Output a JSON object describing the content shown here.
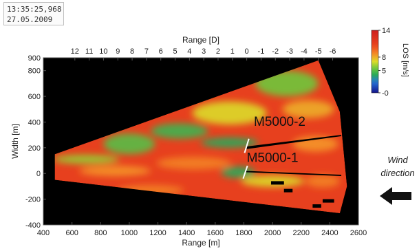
{
  "timestamp": {
    "time": "13:35:25,968",
    "date": "27.05.2009"
  },
  "chart_data": {
    "type": "heatmap",
    "xlabel": "Range [m]",
    "x2label": "Range [D]",
    "ylabel": "Width [m]",
    "xlim": [
      400,
      2600
    ],
    "ylim": [
      -400,
      900
    ],
    "x_ticks": [
      400,
      600,
      800,
      1000,
      1200,
      1400,
      1600,
      1800,
      2000,
      2200,
      2400,
      2600
    ],
    "y_ticks": [
      -400,
      -200,
      0,
      200,
      400,
      600,
      800
    ],
    "x2_ticks": [
      12,
      11,
      10,
      9,
      8,
      7,
      6,
      5,
      4,
      3,
      2,
      1,
      0,
      -1,
      -2,
      -3,
      -4,
      -5,
      -6
    ],
    "x2_ref": {
      "zero_at_range_m": 1820,
      "rotor_diameter_m": 100
    },
    "colorbar": {
      "label": "LOS [m/s]",
      "min": 0,
      "max": 14,
      "ticks": [
        0,
        5,
        8,
        14
      ]
    },
    "annotations": [
      {
        "text": "M5000-2",
        "x": 2050,
        "y": 370
      },
      {
        "text": "M5000-1",
        "x": 2000,
        "y": 90
      },
      {
        "text": "Wind\ndirection",
        "x": 0,
        "y": 0
      }
    ],
    "scan_sector": {
      "origin": [
        480,
        150
      ],
      "boundary_top": [
        [
          480,
          150
        ],
        [
          2320,
          880
        ],
        [
          2470,
          480
        ],
        [
          2520,
          -100
        ],
        [
          2470,
          -310
        ],
        [
          480,
          -50
        ]
      ]
    },
    "turbines": [
      {
        "name": "M5000-2",
        "x": 1820,
        "y0": 160,
        "y1": 270
      },
      {
        "name": "M5000-1",
        "x": 1810,
        "y0": -40,
        "y1": 60
      }
    ],
    "los_field": [
      {
        "x": 700,
        "y": 110,
        "rx": 230,
        "ry": 35,
        "value": 6
      },
      {
        "x": 1000,
        "y": 230,
        "rx": 180,
        "ry": 80,
        "value": 5
      },
      {
        "x": 1350,
        "y": 330,
        "rx": 200,
        "ry": 60,
        "value": 4.5
      },
      {
        "x": 1700,
        "y": 240,
        "rx": 200,
        "ry": 40,
        "value": 4
      },
      {
        "x": 1700,
        "y": 470,
        "rx": 260,
        "ry": 90,
        "value": 7
      },
      {
        "x": 2100,
        "y": 700,
        "rx": 220,
        "ry": 100,
        "value": 5.5
      },
      {
        "x": 2250,
        "y": 500,
        "rx": 180,
        "ry": 70,
        "value": 8
      },
      {
        "x": 900,
        "y": 20,
        "rx": 250,
        "ry": 40,
        "value": 8.5
      },
      {
        "x": 1450,
        "y": 80,
        "rx": 260,
        "ry": 50,
        "value": 9
      },
      {
        "x": 1760,
        "y": 10,
        "rx": 120,
        "ry": 45,
        "value": 4
      },
      {
        "x": 2000,
        "y": -60,
        "rx": 220,
        "ry": 45,
        "value": 7
      },
      {
        "x": 2300,
        "y": 230,
        "rx": 160,
        "ry": 60,
        "value": 8.5
      },
      {
        "x": 1150,
        "y": -130,
        "rx": 230,
        "ry": 40,
        "value": 9
      },
      {
        "x": 2350,
        "y": -60,
        "rx": 120,
        "ry": 50,
        "value": 9
      }
    ]
  }
}
